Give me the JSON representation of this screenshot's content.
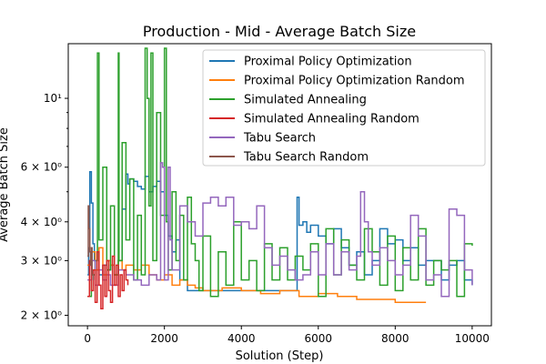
{
  "chart_data": {
    "type": "line",
    "title": "Production - Mid - Average Batch Size",
    "xlabel": "Solution (Step)",
    "ylabel": "Average Batch Size",
    "yscale": "log",
    "xlim": [
      -500,
      10500
    ],
    "ylim": [
      1.85,
      15.0
    ],
    "x_ticks": [
      0,
      2000,
      4000,
      6000,
      8000,
      10000
    ],
    "x_tick_labels": [
      "0",
      "2000",
      "4000",
      "6000",
      "8000",
      "10000"
    ],
    "y_ticks": [
      2,
      3,
      4,
      6,
      10
    ],
    "y_tick_labels": [
      "2 × 10⁰",
      "3 × 10⁰",
      "4 × 10⁰",
      "6 × 10⁰",
      "10¹"
    ],
    "legend_position": "upper-right",
    "series": [
      {
        "name": "Proximal Policy Optimization",
        "color": "#1f77b4",
        "x": [
          0,
          30,
          60,
          100,
          140,
          180,
          250,
          300,
          400,
          500,
          600,
          700,
          800,
          900,
          1000,
          1050,
          1100,
          1200,
          1300,
          1400,
          1500,
          1600,
          1700,
          1800,
          1900,
          2000,
          2100,
          2200,
          2300,
          2400,
          2600,
          2800,
          3000,
          3200,
          3500,
          3800,
          4200,
          4600,
          5000,
          5400,
          5450,
          5500,
          5600,
          5700,
          5800,
          6000,
          6200,
          6400,
          6600,
          6800,
          7000,
          7200,
          7400,
          7600,
          7800,
          8000,
          8200,
          8400,
          8600,
          8800,
          9000,
          9200,
          9400,
          9600,
          9800,
          10000
        ],
        "values": [
          2.7,
          3.3,
          5.8,
          4.6,
          3.4,
          3.0,
          2.8,
          2.7,
          2.9,
          2.8,
          2.9,
          2.7,
          3.0,
          4.4,
          5.7,
          5.3,
          5.5,
          5.4,
          5.2,
          5.1,
          5.6,
          5.0,
          5.2,
          5.4,
          5.0,
          4.2,
          3.6,
          3.2,
          3.5,
          2.6,
          2.4,
          2.4,
          2.4,
          2.4,
          2.4,
          2.4,
          2.4,
          2.4,
          2.4,
          2.4,
          4.8,
          3.9,
          4.0,
          3.7,
          3.9,
          3.6,
          3.4,
          3.8,
          3.3,
          2.9,
          3.2,
          2.7,
          3.0,
          3.8,
          3.4,
          3.5,
          3.0,
          3.3,
          2.9,
          3.0,
          3.0,
          2.6,
          2.9,
          3.0,
          2.6,
          2.5
        ]
      },
      {
        "name": "Proximal Policy Optimization Random",
        "color": "#ff7f0e",
        "x": [
          0,
          100,
          200,
          300,
          400,
          500,
          600,
          700,
          800,
          900,
          1000,
          1200,
          1400,
          1600,
          1800,
          2000,
          2200,
          2400,
          2600,
          2800,
          3000,
          3500,
          4000,
          4500,
          5000,
          5500,
          6000,
          6500,
          7000,
          7500,
          8000,
          8500,
          8800
        ],
        "values": [
          2.9,
          3.2,
          2.8,
          3.3,
          2.7,
          3.0,
          2.9,
          2.7,
          3.0,
          2.8,
          2.9,
          2.8,
          2.9,
          2.7,
          2.6,
          2.7,
          2.5,
          2.6,
          2.5,
          2.45,
          2.4,
          2.45,
          2.4,
          2.35,
          2.4,
          2.3,
          2.35,
          2.3,
          2.25,
          2.25,
          2.2,
          2.2,
          2.2
        ]
      },
      {
        "name": "Simulated Annealing",
        "color": "#2ca02c",
        "x": [
          0,
          100,
          200,
          260,
          300,
          400,
          500,
          600,
          700,
          800,
          820,
          900,
          1000,
          1100,
          1200,
          1300,
          1400,
          1500,
          1550,
          1600,
          1650,
          1700,
          1800,
          1900,
          2000,
          2050,
          2100,
          2200,
          2300,
          2400,
          2500,
          2600,
          2700,
          2800,
          2900,
          3000,
          3200,
          3400,
          3600,
          3800,
          4000,
          4200,
          4400,
          4600,
          4800,
          5000,
          5200,
          5400,
          5600,
          5800,
          6000,
          6200,
          6400,
          6600,
          6800,
          7000,
          7200,
          7400,
          7600,
          7800,
          8000,
          8200,
          8400,
          8600,
          8800,
          9000,
          9200,
          9400,
          9600,
          9800,
          10000
        ],
        "values": [
          2.3,
          2.7,
          3.0,
          14.0,
          3.5,
          6.0,
          2.8,
          4.5,
          2.7,
          14.0,
          3.0,
          7.2,
          3.5,
          5.5,
          2.6,
          4.2,
          2.7,
          14.5,
          10.0,
          4.5,
          14.0,
          3.0,
          9.0,
          4.2,
          14.5,
          4.0,
          2.8,
          5.0,
          3.0,
          4.2,
          2.6,
          4.8,
          3.4,
          3.0,
          2.4,
          3.6,
          2.3,
          3.2,
          2.5,
          4.0,
          2.6,
          3.0,
          2.4,
          3.4,
          2.6,
          3.3,
          2.6,
          3.1,
          2.8,
          3.4,
          2.3,
          3.8,
          2.7,
          3.5,
          2.9,
          2.6,
          3.8,
          3.2,
          2.5,
          3.6,
          2.4,
          3.3,
          2.6,
          3.8,
          2.5,
          3.0,
          2.8,
          3.0,
          2.3,
          3.4,
          3.35
        ]
      },
      {
        "name": "Simulated Annealing Random",
        "color": "#d62728",
        "x": [
          0,
          50,
          100,
          150,
          200,
          250,
          300,
          350,
          400,
          450,
          500,
          550,
          600,
          650,
          700,
          750,
          800,
          850,
          900,
          950,
          1000,
          1050
        ],
        "values": [
          2.3,
          3.0,
          2.4,
          2.8,
          2.2,
          3.2,
          2.5,
          2.1,
          2.9,
          2.3,
          3.0,
          2.4,
          2.2,
          3.1,
          2.5,
          2.9,
          2.3,
          2.7,
          2.4,
          2.8,
          2.6,
          2.5
        ]
      },
      {
        "name": "Tabu Search",
        "color": "#9467bd",
        "x": [
          0,
          100,
          200,
          300,
          400,
          500,
          600,
          800,
          1000,
          1200,
          1400,
          1600,
          1800,
          1900,
          1950,
          2000,
          2100,
          2150,
          2200,
          2400,
          2600,
          2800,
          3000,
          3200,
          3400,
          3600,
          3800,
          4000,
          4200,
          4400,
          4600,
          4800,
          5000,
          5200,
          5400,
          5600,
          5800,
          6000,
          6200,
          6400,
          6600,
          6800,
          7000,
          7100,
          7200,
          7300,
          7400,
          7600,
          7800,
          8000,
          8200,
          8400,
          8600,
          8800,
          9000,
          9200,
          9400,
          9600,
          9800,
          10000
        ],
        "values": [
          2.6,
          3.0,
          2.5,
          2.8,
          2.6,
          2.7,
          2.5,
          2.8,
          2.7,
          2.6,
          2.5,
          2.7,
          2.6,
          6.2,
          6.0,
          2.6,
          6.0,
          3.5,
          2.8,
          4.5,
          4.0,
          3.6,
          4.6,
          4.8,
          4.5,
          4.8,
          3.9,
          4.0,
          3.8,
          4.5,
          3.3,
          2.9,
          3.1,
          2.8,
          2.6,
          2.7,
          3.2,
          2.7,
          3.4,
          2.7,
          3.2,
          2.8,
          3.1,
          5.0,
          4.0,
          3.2,
          2.9,
          3.3,
          3.0,
          2.7,
          2.9,
          4.2,
          3.6,
          2.6,
          2.7,
          2.3,
          4.4,
          4.2,
          2.8,
          2.5
        ]
      },
      {
        "name": "Tabu Search Random",
        "color": "#8c564b",
        "x": [
          0,
          20,
          40,
          60,
          80,
          100,
          120,
          150
        ],
        "values": [
          3.1,
          4.5,
          3.8,
          3.2,
          2.9,
          3.3,
          2.7,
          2.6
        ]
      }
    ]
  }
}
